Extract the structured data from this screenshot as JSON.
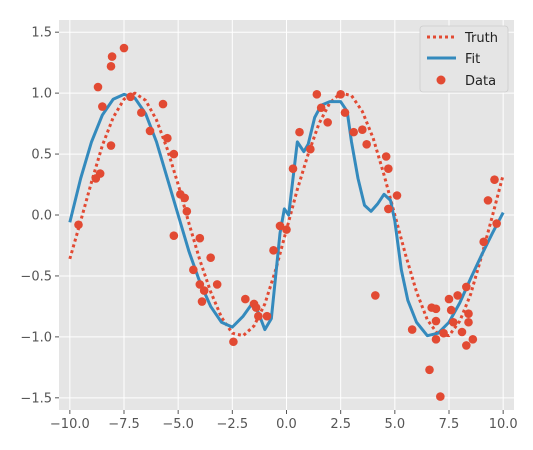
{
  "chart_data": {
    "type": "line",
    "title": "",
    "xlabel": "",
    "ylabel": "",
    "xlim": [
      -10.5,
      10.5
    ],
    "ylim": [
      -1.6,
      1.6
    ],
    "xticks": [
      -10.0,
      -7.5,
      -5.0,
      -2.5,
      0.0,
      2.5,
      5.0,
      7.5,
      10.0
    ],
    "xtick_labels": [
      "−10.0",
      "−7.5",
      "−5.0",
      "−2.5",
      "0.0",
      "2.5",
      "5.0",
      "7.5",
      "10.0"
    ],
    "yticks": [
      -1.5,
      -1.0,
      -0.5,
      0.0,
      0.5,
      1.0,
      1.5
    ],
    "ytick_labels": [
      "−1.5",
      "−1.0",
      "−0.5",
      "0.0",
      "0.5",
      "1.0",
      "1.5"
    ],
    "grid": true,
    "legend": {
      "position": "top-right"
    },
    "colors": {
      "truth": "#E24A33",
      "fit": "#348ABD",
      "data": "#E24A33",
      "plot_bg": "#E5E5E5",
      "grid": "#ffffff"
    },
    "series": [
      {
        "name": "Truth",
        "kind": "dotted-line",
        "x": [
          -10.0,
          -9.5,
          -9.0,
          -8.5,
          -8.0,
          -7.5,
          -7.0,
          -6.5,
          -6.0,
          -5.5,
          -5.0,
          -4.5,
          -4.0,
          -3.5,
          -3.0,
          -2.5,
          -2.0,
          -1.5,
          -1.0,
          -0.5,
          0.0,
          0.5,
          1.0,
          1.5,
          2.0,
          2.5,
          3.0,
          3.5,
          4.0,
          4.5,
          5.0,
          5.5,
          6.0,
          6.5,
          7.0,
          7.5,
          8.0,
          8.5,
          9.0,
          9.5,
          10.0
        ],
        "y": [
          -0.36,
          -0.05,
          0.27,
          0.57,
          0.8,
          0.95,
          1.0,
          0.94,
          0.78,
          0.54,
          0.25,
          -0.07,
          -0.37,
          -0.63,
          -0.84,
          -0.97,
          -0.99,
          -0.91,
          -0.73,
          -0.45,
          -0.12,
          0.21,
          0.5,
          0.75,
          0.92,
          1.0,
          0.98,
          0.85,
          0.63,
          0.33,
          0.0,
          -0.33,
          -0.63,
          -0.86,
          -0.98,
          -0.99,
          -0.87,
          -0.65,
          -0.34,
          -0.01,
          0.33
        ]
      },
      {
        "name": "Fit",
        "kind": "line",
        "x": [
          -10.0,
          -9.5,
          -9.0,
          -8.5,
          -8.0,
          -7.5,
          -7.0,
          -6.5,
          -6.0,
          -5.5,
          -5.0,
          -4.5,
          -4.0,
          -3.5,
          -3.0,
          -2.5,
          -2.0,
          -1.6,
          -1.3,
          -1.0,
          -0.7,
          -0.5,
          -0.3,
          -0.1,
          0.1,
          0.3,
          0.5,
          0.8,
          1.0,
          1.3,
          1.6,
          2.0,
          2.5,
          2.8,
          3.0,
          3.3,
          3.6,
          3.9,
          4.2,
          4.5,
          4.8,
          5.0,
          5.3,
          5.6,
          6.0,
          6.5,
          7.0,
          7.5,
          8.0,
          8.5,
          9.0,
          9.5,
          10.0
        ],
        "y": [
          -0.06,
          0.3,
          0.6,
          0.82,
          0.95,
          0.99,
          0.96,
          0.83,
          0.6,
          0.3,
          0.0,
          -0.3,
          -0.55,
          -0.75,
          -0.88,
          -0.92,
          -0.83,
          -0.73,
          -0.8,
          -0.94,
          -0.85,
          -0.5,
          -0.15,
          0.05,
          0.0,
          0.3,
          0.6,
          0.52,
          0.58,
          0.8,
          0.9,
          0.93,
          0.93,
          0.85,
          0.6,
          0.3,
          0.08,
          0.03,
          0.09,
          0.17,
          0.12,
          -0.05,
          -0.45,
          -0.7,
          -0.88,
          -0.99,
          -0.97,
          -0.88,
          -0.72,
          -0.52,
          -0.33,
          -0.15,
          0.02
        ]
      },
      {
        "name": "Data",
        "kind": "scatter",
        "points": [
          [
            -9.6,
            -0.08
          ],
          [
            -8.8,
            0.3
          ],
          [
            -8.7,
            1.05
          ],
          [
            -8.6,
            0.34
          ],
          [
            -8.5,
            0.89
          ],
          [
            -8.1,
            0.57
          ],
          [
            -8.1,
            1.22
          ],
          [
            -8.05,
            1.3
          ],
          [
            -7.5,
            1.37
          ],
          [
            -7.2,
            0.97
          ],
          [
            -6.7,
            0.84
          ],
          [
            -6.3,
            0.69
          ],
          [
            -5.7,
            0.91
          ],
          [
            -5.5,
            0.63
          ],
          [
            -5.2,
            0.5
          ],
          [
            -5.2,
            -0.17
          ],
          [
            -4.9,
            0.17
          ],
          [
            -4.7,
            0.14
          ],
          [
            -4.6,
            0.03
          ],
          [
            -4.3,
            -0.45
          ],
          [
            -4.0,
            -0.19
          ],
          [
            -4.0,
            -0.57
          ],
          [
            -3.9,
            -0.71
          ],
          [
            -3.8,
            -0.62
          ],
          [
            -3.5,
            -0.35
          ],
          [
            -3.2,
            -0.57
          ],
          [
            -2.45,
            -1.04
          ],
          [
            -1.9,
            -0.69
          ],
          [
            -1.5,
            -0.73
          ],
          [
            -1.4,
            -0.76
          ],
          [
            -1.3,
            -0.83
          ],
          [
            -0.9,
            -0.83
          ],
          [
            -0.6,
            -0.29
          ],
          [
            -0.3,
            -0.09
          ],
          [
            0.0,
            -0.12
          ],
          [
            0.3,
            0.38
          ],
          [
            0.6,
            0.68
          ],
          [
            1.1,
            0.54
          ],
          [
            1.4,
            0.99
          ],
          [
            1.6,
            0.88
          ],
          [
            1.9,
            0.76
          ],
          [
            2.5,
            0.99
          ],
          [
            2.7,
            0.84
          ],
          [
            3.1,
            0.68
          ],
          [
            3.5,
            0.7
          ],
          [
            3.7,
            0.58
          ],
          [
            4.1,
            -0.66
          ],
          [
            4.6,
            0.48
          ],
          [
            4.7,
            0.38
          ],
          [
            4.7,
            0.05
          ],
          [
            5.1,
            0.16
          ],
          [
            5.8,
            -0.94
          ],
          [
            6.6,
            -1.27
          ],
          [
            6.7,
            -0.76
          ],
          [
            6.9,
            -0.77
          ],
          [
            6.9,
            -0.87
          ],
          [
            6.9,
            -1.02
          ],
          [
            7.1,
            -1.49
          ],
          [
            7.25,
            -0.97
          ],
          [
            7.5,
            -0.69
          ],
          [
            7.6,
            -0.78
          ],
          [
            7.7,
            -0.88
          ],
          [
            7.9,
            -0.66
          ],
          [
            8.1,
            -0.96
          ],
          [
            8.3,
            -1.07
          ],
          [
            8.3,
            -0.59
          ],
          [
            8.4,
            -0.81
          ],
          [
            8.4,
            -0.88
          ],
          [
            8.6,
            -1.02
          ],
          [
            9.1,
            -0.22
          ],
          [
            9.3,
            0.12
          ],
          [
            9.6,
            0.29
          ],
          [
            9.7,
            -0.07
          ]
        ]
      }
    ]
  }
}
